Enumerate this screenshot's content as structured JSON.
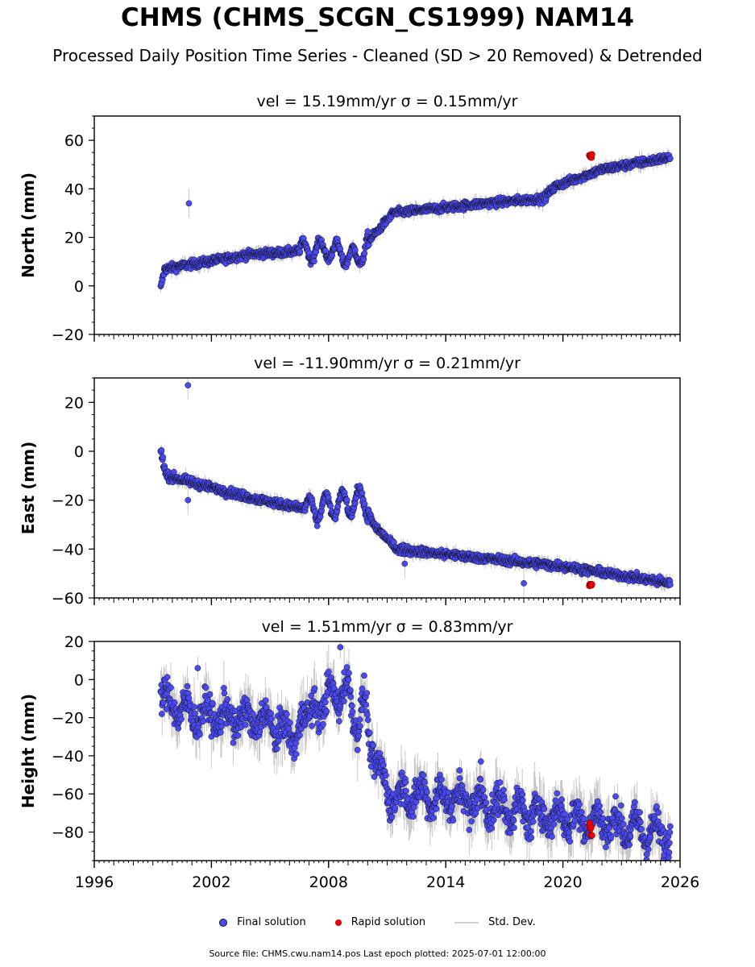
{
  "title": "CHMS (CHMS_SCGN_CS1999) NAM14",
  "subtitle": "Processed Daily Position Time Series - Cleaned (SD > 20 Removed) & Detrended",
  "legend": {
    "final_label": "Final solution",
    "rapid_label": "Rapid solution",
    "std_label": "Std. Dev."
  },
  "footer": "Source file: CHMS.cwu.nam14.pos  Last epoch plotted: 2025-07-01 12:00:00",
  "colors": {
    "final": "#4a4af0",
    "final_edge": "#111122",
    "rapid": "#ee0000",
    "std": "#c8c8c8"
  },
  "chart_data": [
    {
      "type": "scatter",
      "panel": "north",
      "title": "vel = 15.19mm/yr   σ = 0.15mm/yr",
      "ylabel": "North (mm)",
      "xlim": [
        1996,
        2026
      ],
      "ylim": [
        -20,
        70
      ],
      "yticks": [
        -20,
        0,
        20,
        40,
        60
      ],
      "xticks": [
        1996,
        2002,
        2008,
        2014,
        2020,
        2026
      ],
      "start": 1999.4,
      "end": 2025.5,
      "trend": [
        [
          1999.4,
          -1
        ],
        [
          1999.6,
          7
        ],
        [
          2004,
          13
        ],
        [
          2008,
          15
        ],
        [
          2009.5,
          11
        ],
        [
          2010,
          18
        ],
        [
          2011.3,
          30
        ],
        [
          2016,
          34
        ],
        [
          2019,
          36
        ],
        [
          2019.6,
          41
        ],
        [
          2022,
          48
        ],
        [
          2025.5,
          53
        ]
      ],
      "wiggle_amp": 1.2,
      "osc": [
        [
          2006.5,
          2010,
          4.0,
          0.85
        ]
      ],
      "outliers": [
        [
          2000.85,
          34
        ]
      ],
      "rapid_value": 53.5
    },
    {
      "type": "scatter",
      "panel": "east",
      "title": "vel = -11.90mm/yr   σ = 0.21mm/yr",
      "ylabel": "East (mm)",
      "xlim": [
        1996,
        2026
      ],
      "ylim": [
        -60,
        30
      ],
      "yticks": [
        -60,
        -40,
        -20,
        0,
        20
      ],
      "xticks": [
        1996,
        2002,
        2008,
        2014,
        2020,
        2026
      ],
      "start": 1999.4,
      "end": 2025.5,
      "trend": [
        [
          1999.4,
          0
        ],
        [
          1999.7,
          -10
        ],
        [
          2004,
          -19
        ],
        [
          2007,
          -24
        ],
        [
          2009.8,
          -20
        ],
        [
          2010.3,
          -30
        ],
        [
          2011.5,
          -40
        ],
        [
          2015,
          -43
        ],
        [
          2020,
          -47
        ],
        [
          2025.5,
          -54
        ]
      ],
      "wiggle_amp": 1.2,
      "osc": [
        [
          2006.8,
          2010,
          5.0,
          0.85
        ]
      ],
      "outliers": [
        [
          2000.8,
          27
        ],
        [
          2000.8,
          -20
        ],
        [
          2011.9,
          -46
        ],
        [
          2018,
          -54
        ]
      ],
      "rapid_value": -54.5
    },
    {
      "type": "scatter",
      "panel": "height",
      "title": "vel = 1.51mm/yr   σ = 0.83mm/yr",
      "ylabel": "Height (mm)",
      "xlim": [
        1996,
        2026
      ],
      "ylim": [
        -95,
        20
      ],
      "yticks": [
        -80,
        -60,
        -40,
        -20,
        0,
        20
      ],
      "xticks": [
        1996,
        2002,
        2008,
        2014,
        2020,
        2026
      ],
      "start": 1999.4,
      "end": 2025.5,
      "trend": [
        [
          1999.4,
          -10
        ],
        [
          2001,
          -18
        ],
        [
          2005,
          -22
        ],
        [
          2006,
          -30
        ],
        [
          2007,
          -20
        ],
        [
          2008.5,
          -5
        ],
        [
          2009.8,
          -20
        ],
        [
          2010.5,
          -45
        ],
        [
          2011,
          -60
        ],
        [
          2015,
          -63
        ],
        [
          2018,
          -70
        ],
        [
          2022,
          -75
        ],
        [
          2025.5,
          -82
        ]
      ],
      "wiggle_amp": 6,
      "osc": [
        [
          1999.5,
          2026,
          6.0,
          1.0
        ],
        [
          2007,
          2010,
          10.0,
          0.9
        ]
      ],
      "outliers": [
        [
          2001.3,
          6
        ],
        [
          2008.6,
          17
        ],
        [
          2015.8,
          -43
        ]
      ],
      "rapid_value": -79
    }
  ]
}
